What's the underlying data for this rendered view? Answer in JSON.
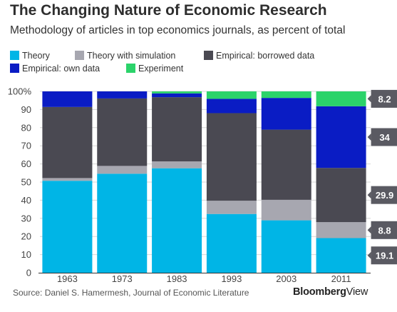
{
  "header": {
    "title": "The Changing Nature of Economic Research",
    "subtitle": "Methodology of articles in top economics journals, as percent of total"
  },
  "legend": [
    {
      "label": "Theory",
      "color": "#00b5e6"
    },
    {
      "label": "Theory with simulation",
      "color": "#a7a7b0"
    },
    {
      "label": "Empirical: borrowed data",
      "color": "#4a4952"
    },
    {
      "label": "Empirical: own data",
      "color": "#0a1cc4"
    },
    {
      "label": "Experiment",
      "color": "#2bd36a"
    }
  ],
  "footer": {
    "source": "Source: Daniel S. Hamermesh, Journal of Economic Literature",
    "brand_bold": "Bloomberg",
    "brand_light": "View"
  },
  "chart_data": {
    "type": "bar",
    "stacked": true,
    "categories": [
      "1963",
      "1973",
      "1983",
      "1993",
      "2003",
      "2011"
    ],
    "series": [
      {
        "name": "Theory",
        "color": "#00b5e6",
        "values": [
          50.7,
          54.6,
          57.6,
          32.4,
          28.9,
          19.1
        ]
      },
      {
        "name": "Theory with simulation",
        "color": "#a7a7b0",
        "values": [
          1.5,
          4.3,
          3.8,
          7.3,
          11.3,
          8.8
        ]
      },
      {
        "name": "Empirical: borrowed data",
        "color": "#4a4952",
        "values": [
          39.2,
          37.2,
          35.4,
          48.3,
          38.7,
          29.9
        ]
      },
      {
        "name": "Empirical: own data",
        "color": "#0a1cc4",
        "values": [
          8.6,
          3.9,
          2.1,
          7.9,
          17.5,
          34.0
        ]
      },
      {
        "name": "Experiment",
        "color": "#2bd36a",
        "values": [
          0.0,
          0.0,
          1.1,
          4.1,
          3.6,
          8.2
        ]
      }
    ],
    "data_labels": [
      {
        "category": "2011",
        "series": "Experiment",
        "text": "8.2"
      },
      {
        "category": "2011",
        "series": "Empirical: own data",
        "text": "34"
      },
      {
        "category": "2011",
        "series": "Empirical: borrowed data",
        "text": "29.9"
      },
      {
        "category": "2011",
        "series": "Theory with simulation",
        "text": "8.8"
      },
      {
        "category": "2011",
        "series": "Theory",
        "text": "19.1"
      }
    ],
    "ylim": [
      0,
      100
    ],
    "yticks": [
      "0",
      "10",
      "20",
      "30",
      "40",
      "50",
      "60",
      "70",
      "80",
      "90",
      "100%"
    ],
    "xlabel": "",
    "ylabel": "",
    "grid": true,
    "legend_position": "top"
  }
}
